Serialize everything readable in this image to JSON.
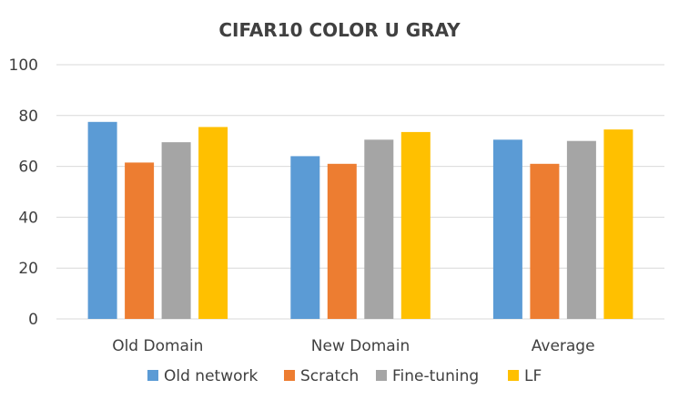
{
  "chart_data": {
    "type": "bar",
    "title": "CIFAR10 COLOR U GRAY",
    "xlabel": "",
    "ylabel": "",
    "categories": [
      "Old Domain",
      "New Domain",
      "Average"
    ],
    "series": [
      {
        "name": "Old network",
        "color": "#5B9BD5",
        "values": [
          77.5,
          64,
          70.5
        ]
      },
      {
        "name": "Scratch",
        "color": "#ED7D31",
        "values": [
          61.5,
          61,
          61
        ]
      },
      {
        "name": "Fine-tuning",
        "color": "#A5A5A5",
        "values": [
          69.5,
          70.5,
          70
        ]
      },
      {
        "name": "LF",
        "color": "#FFC000",
        "values": [
          75.5,
          73.5,
          74.5
        ]
      }
    ],
    "ylim": [
      0,
      100
    ],
    "yticks": [
      "0",
      "20",
      "40",
      "60",
      "80",
      "100"
    ],
    "grid": true,
    "legend_position": "bottom"
  }
}
